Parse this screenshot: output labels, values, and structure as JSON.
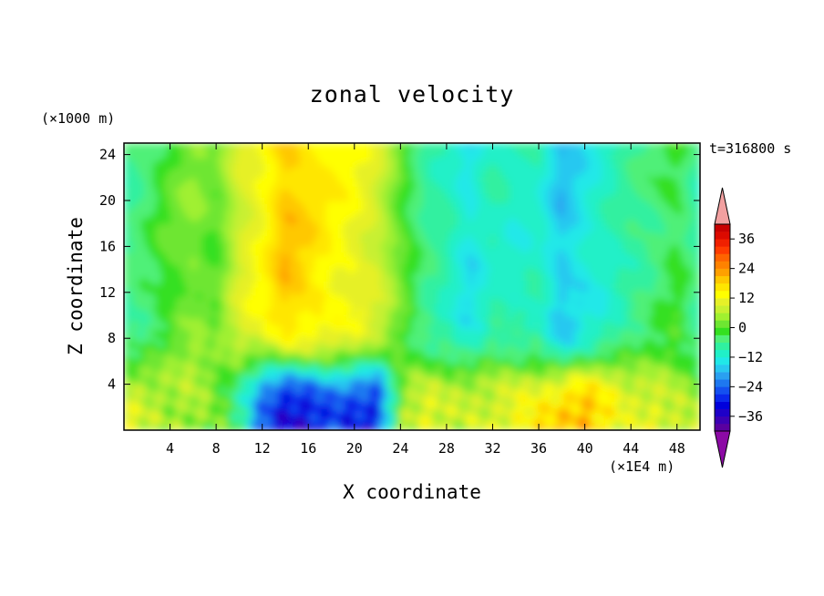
{
  "chart_data": {
    "type": "heatmap",
    "title": "zonal velocity",
    "xlabel": "X coordinate",
    "ylabel": "Z coordinate",
    "x_unit": "(×1E4 m)",
    "y_unit": "(×1000 m)",
    "time_label": "t=316800 s",
    "xlim": [
      0,
      50
    ],
    "ylim": [
      0,
      25
    ],
    "x_ticks": [
      4,
      8,
      12,
      16,
      20,
      24,
      28,
      32,
      36,
      40,
      44,
      48
    ],
    "y_ticks": [
      4,
      8,
      12,
      16,
      20,
      24
    ],
    "colorbar": {
      "levels": [
        -42,
        -39,
        -36,
        -33,
        -30,
        -27,
        -24,
        -21,
        -18,
        -15,
        -12,
        -9,
        -6,
        -3,
        0,
        3,
        6,
        9,
        12,
        15,
        18,
        21,
        24,
        27,
        30,
        33,
        36,
        39,
        42
      ],
      "tick_values": [
        36,
        24,
        12,
        0,
        -12,
        -24,
        -36
      ],
      "tick_labels": [
        "36",
        "24",
        "12",
        "0",
        "−12",
        "−24",
        "−36"
      ],
      "under_color": "#8c0aa5",
      "over_color": "#f2a0a0",
      "colors": [
        "#5a00a0",
        "#3c00b4",
        "#1e00c8",
        "#0000dc",
        "#0a28ec",
        "#1450f0",
        "#1e78f0",
        "#2aa0f0",
        "#28c8f0",
        "#20e8e8",
        "#20f0c8",
        "#30f0a0",
        "#50f078",
        "#34e020",
        "#6ee632",
        "#a0f030",
        "#c8f030",
        "#e6f028",
        "#ffff00",
        "#ffe600",
        "#ffc800",
        "#ffa000",
        "#ff8200",
        "#ff6400",
        "#ff3c00",
        "#f02000",
        "#dc0a00",
        "#c80000"
      ]
    },
    "vertical_structure": {
      "x": [
        0,
        2,
        4,
        6,
        8,
        10,
        12,
        14,
        16,
        18,
        20,
        22,
        24,
        26,
        28,
        30,
        32,
        34,
        36,
        38,
        40,
        42,
        44,
        46,
        48,
        50
      ],
      "upper_u": [
        -7,
        -4,
        0,
        3,
        0,
        9,
        13,
        20,
        17,
        14,
        12,
        9,
        1,
        -6,
        -9,
        -14,
        -9,
        -11,
        -10,
        -17,
        -13,
        -10,
        -7,
        -5,
        -2,
        -8
      ],
      "near_surface_u": [
        10,
        6,
        4,
        6,
        3,
        -6,
        -25,
        -36,
        -33,
        -27,
        -28,
        -30,
        3,
        10,
        7,
        8,
        10,
        14,
        15,
        18,
        21,
        15,
        10,
        12,
        8,
        5
      ]
    }
  }
}
